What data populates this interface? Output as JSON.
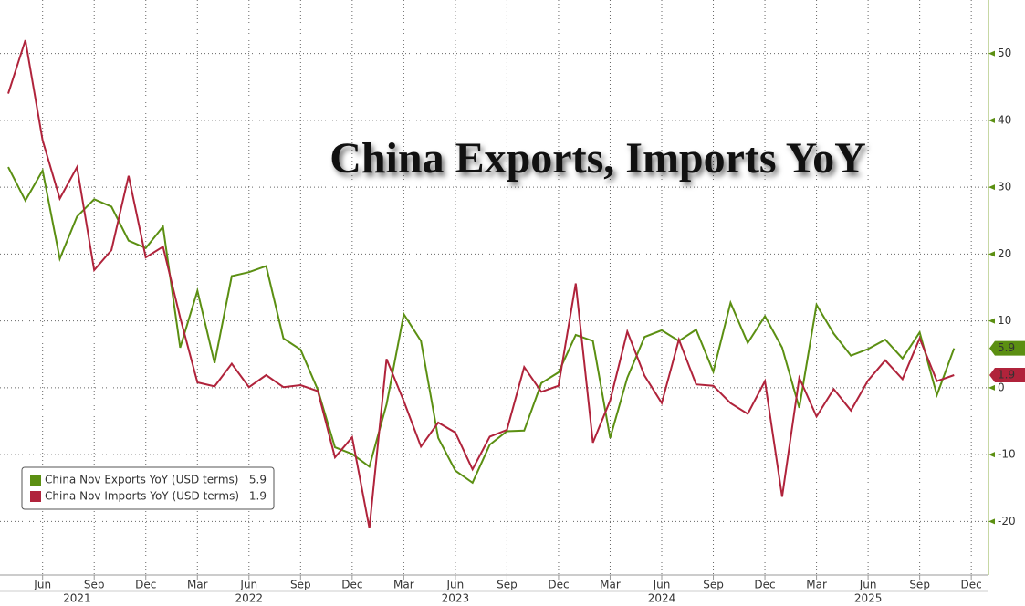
{
  "chart_data": {
    "type": "line",
    "title": "China Exports, Imports YoY",
    "x": [
      "2021-04",
      "2021-05",
      "2021-06",
      "2021-07",
      "2021-08",
      "2021-09",
      "2021-10",
      "2021-11",
      "2021-12",
      "2022-01",
      "2022-02",
      "2022-03",
      "2022-04",
      "2022-05",
      "2022-06",
      "2022-07",
      "2022-08",
      "2022-09",
      "2022-10",
      "2022-11",
      "2022-12",
      "2023-01",
      "2023-02",
      "2023-03",
      "2023-04",
      "2023-05",
      "2023-06",
      "2023-07",
      "2023-08",
      "2023-09",
      "2023-10",
      "2023-11",
      "2023-12",
      "2024-01",
      "2024-02",
      "2024-03",
      "2024-04",
      "2024-05",
      "2024-06",
      "2024-07",
      "2024-08",
      "2024-09",
      "2024-10",
      "2024-11",
      "2024-12",
      "2025-01",
      "2025-02",
      "2025-03",
      "2025-04",
      "2025-05",
      "2025-06",
      "2025-07",
      "2025-08",
      "2025-09",
      "2025-10",
      "2025-11"
    ],
    "series": [
      {
        "name": "China Nov Exports YoY (USD terms)",
        "color": "#5b8f12",
        "values": [
          33,
          28,
          32.5,
          19.3,
          25.6,
          28.2,
          27.1,
          22,
          20.9,
          24.1,
          6,
          14.5,
          3.7,
          16.7,
          17.3,
          18.2,
          7.4,
          5.7,
          -0.3,
          -8.9,
          -9.9,
          -11.8,
          -2.5,
          11,
          7,
          -7.5,
          -12.4,
          -14.2,
          -8.5,
          -6.5,
          -6.4,
          0.7,
          2.3,
          7.9,
          7,
          -7.5,
          1.5,
          7.6,
          8.6,
          7,
          8.7,
          2.4,
          12.7,
          6.7,
          10.7,
          6,
          -3,
          12.4,
          8.1,
          4.8,
          5.8,
          7.2,
          4.4,
          8.3,
          -1.1,
          5.9
        ]
      },
      {
        "name": "China Nov Imports YoY (USD terms)",
        "color": "#b0233b",
        "values": [
          44,
          52,
          37,
          28.3,
          33,
          17.6,
          20.6,
          31.7,
          19.5,
          21.1,
          10.5,
          0.8,
          0.2,
          3.6,
          0.1,
          1.9,
          0.1,
          0.4,
          -0.5,
          -10.4,
          -7.4,
          -21,
          4.3,
          -2,
          -8.8,
          -5.2,
          -6.7,
          -12.2,
          -7.3,
          -6.3,
          3.1,
          -0.6,
          0.3,
          15.6,
          -8.2,
          -1.9,
          8.4,
          1.8,
          -2.3,
          7.2,
          0.5,
          0.3,
          -2.3,
          -3.9,
          1.0,
          -16.3,
          1.5,
          -4.3,
          -0.2,
          -3.4,
          1.1,
          4.1,
          1.3,
          7.4,
          1.0,
          1.9
        ]
      }
    ],
    "xlim": [
      "2021-04",
      "2026-01"
    ],
    "xticks": [
      {
        "value": "2021-06",
        "label": "Jun"
      },
      {
        "value": "2021-09",
        "label": "Sep"
      },
      {
        "value": "2021-12",
        "label": "Dec"
      },
      {
        "value": "2022-03",
        "label": "Mar"
      },
      {
        "value": "2022-06",
        "label": "Jun"
      },
      {
        "value": "2022-09",
        "label": "Sep"
      },
      {
        "value": "2022-12",
        "label": "Dec"
      },
      {
        "value": "2023-03",
        "label": "Mar"
      },
      {
        "value": "2023-06",
        "label": "Jun"
      },
      {
        "value": "2023-09",
        "label": "Sep"
      },
      {
        "value": "2023-12",
        "label": "Dec"
      },
      {
        "value": "2024-03",
        "label": "Mar"
      },
      {
        "value": "2024-06",
        "label": "Jun"
      },
      {
        "value": "2024-09",
        "label": "Sep"
      },
      {
        "value": "2024-12",
        "label": "Dec"
      },
      {
        "value": "2025-03",
        "label": "Mar"
      },
      {
        "value": "2025-06",
        "label": "Jun"
      },
      {
        "value": "2025-09",
        "label": "Sep"
      },
      {
        "value": "2025-12",
        "label": "Dec"
      }
    ],
    "year_labels": [
      {
        "value": "2021-08",
        "label": "2021"
      },
      {
        "value": "2022-06",
        "label": "2022"
      },
      {
        "value": "2023-06",
        "label": "2023"
      },
      {
        "value": "2024-06",
        "label": "2024"
      },
      {
        "value": "2025-06",
        "label": "2025"
      }
    ],
    "ylim": [
      -28,
      58
    ],
    "yticks": [
      -20,
      -10,
      0,
      10,
      20,
      30,
      40,
      50
    ],
    "grid": true,
    "legend": "lower left"
  }
}
